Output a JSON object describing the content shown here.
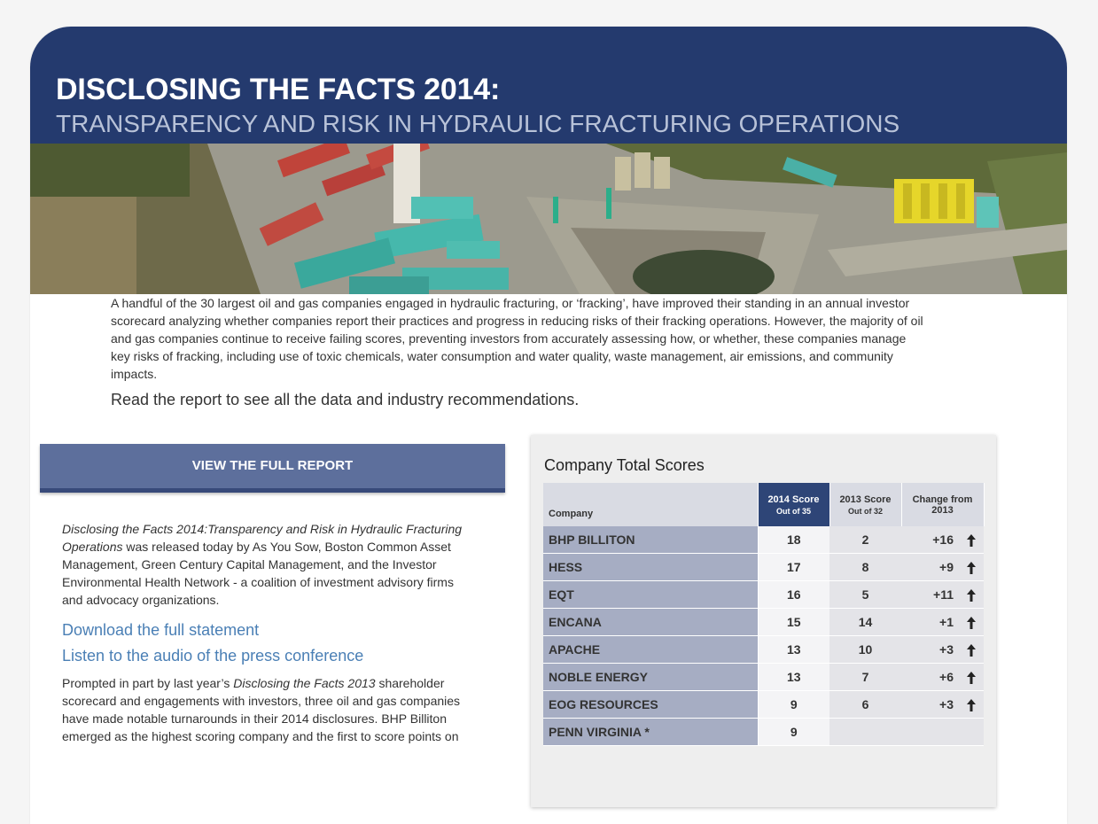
{
  "header": {
    "title": "DISCLOSING THE FACTS 2014:",
    "subtitle": "TRANSPARENCY AND RISK IN HYDRAULIC FRACTURING OPERATIONS"
  },
  "intro": {
    "paragraph": "A handful of the 30 largest oil and gas companies engaged in hydraulic fracturing, or ‘fracking’, have improved their standing in an annual investor scorecard analyzing whether companies report their practices and progress in reducing risks of their fracking operations. However, the majority of oil and gas companies continue to receive failing scores, preventing investors from accurately assessing how, or whether, these companies manage key risks of fracking, including use of toxic chemicals, water consumption and water quality, waste management, air emissions, and community impacts.",
    "read_more": "Read the report to see all the data and industry recommendations."
  },
  "cta": {
    "button_label": "VIEW THE FULL REPORT"
  },
  "left": {
    "release_italic": "Disclosing the Facts 2014:Transparency and Risk in Hydraulic Fracturing Operations",
    "release_rest": " was released today by As You Sow, Boston Common Asset Management, Green Century Capital Management, and the Investor Environmental Health Network - a coalition of investment advisory firms and advocacy organizations.",
    "link_statement": "Download the full statement",
    "link_audio": "Listen to the audio of the press conference",
    "prompted_pre": "Prompted in part by last year’s ",
    "prompted_italic": "Disclosing the Facts 2013",
    "prompted_post": " shareholder scorecard and engagements with investors, three oil and gas companies have made notable turnarounds in their 2014 disclosures. BHP Billiton emerged as the highest scoring company and the first to score points on"
  },
  "scores": {
    "title": "Company Total Scores",
    "headers": {
      "company": "Company",
      "score2014": "2014 Score",
      "score2014_sub": "Out of 35",
      "score2013": "2013 Score",
      "score2013_sub": "Out of 32",
      "change": "Change from 2013"
    },
    "rows": [
      {
        "company": "BHP BILLITON",
        "s2014": "18",
        "s2013": "2",
        "change": "+16",
        "up": true
      },
      {
        "company": "HESS",
        "s2014": "17",
        "s2013": "8",
        "change": "+9",
        "up": true
      },
      {
        "company": "EQT",
        "s2014": "16",
        "s2013": "5",
        "change": "+11",
        "up": true
      },
      {
        "company": "ENCANA",
        "s2014": "15",
        "s2013": "14",
        "change": "+1",
        "up": true
      },
      {
        "company": "APACHE",
        "s2014": "13",
        "s2013": "10",
        "change": "+3",
        "up": true
      },
      {
        "company": "NOBLE ENERGY",
        "s2014": "13",
        "s2013": "7",
        "change": "+6",
        "up": true
      },
      {
        "company": "EOG RESOURCES",
        "s2014": "9",
        "s2013": "6",
        "change": "+3",
        "up": true
      },
      {
        "company": "PENN VIRGINIA *",
        "s2014": "9",
        "s2013": "",
        "change": "",
        "up": false
      }
    ]
  }
}
